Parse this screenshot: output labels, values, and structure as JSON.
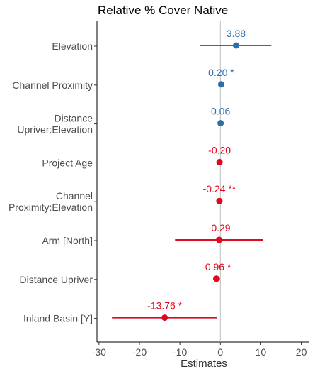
{
  "chart_data": {
    "type": "scatter",
    "title": "Relative % Cover Native",
    "xlabel": "Estimates",
    "ylabel": "",
    "xlim": [
      -30.5,
      22
    ],
    "xticks": [
      -30,
      -20,
      -10,
      0,
      10,
      20
    ],
    "xtick_labels": [
      "-30",
      "-20",
      "-10",
      "0",
      "10",
      "20"
    ],
    "grid": false,
    "reference_line_x": 0,
    "colors": {
      "positive": "#2c6fad",
      "negative": "#e0081c"
    },
    "terms": [
      {
        "lines": [
          "Elevation"
        ],
        "estimate": 3.88,
        "ci": [
          -5.0,
          12.6
        ],
        "label": "3.88"
      },
      {
        "lines": [
          "Channel Proximity"
        ],
        "estimate": 0.2,
        "ci": [
          -0.3,
          0.7
        ],
        "label": "0.20 *"
      },
      {
        "lines": [
          "Distance",
          "Upriver:Elevation"
        ],
        "estimate": 0.06,
        "ci": [
          -0.1,
          0.2
        ],
        "label": "0.06"
      },
      {
        "lines": [
          "Project Age"
        ],
        "estimate": -0.2,
        "ci": [
          -0.8,
          0.4
        ],
        "label": "-0.20"
      },
      {
        "lines": [
          "Channel",
          "Proximity:Elevation"
        ],
        "estimate": -0.24,
        "ci": [
          -0.6,
          0.1
        ],
        "label": "-0.24 **"
      },
      {
        "lines": [
          "Arm [North]"
        ],
        "estimate": -0.29,
        "ci": [
          -11.2,
          10.6
        ],
        "label": "-0.29"
      },
      {
        "lines": [
          "Distance Upriver"
        ],
        "estimate": -0.96,
        "ci": [
          -1.8,
          -0.1
        ],
        "label": "-0.96 *"
      },
      {
        "lines": [
          "Inland Basin [Y]"
        ],
        "estimate": -13.76,
        "ci": [
          -26.8,
          -0.9
        ],
        "label": "-13.76 *"
      }
    ]
  }
}
